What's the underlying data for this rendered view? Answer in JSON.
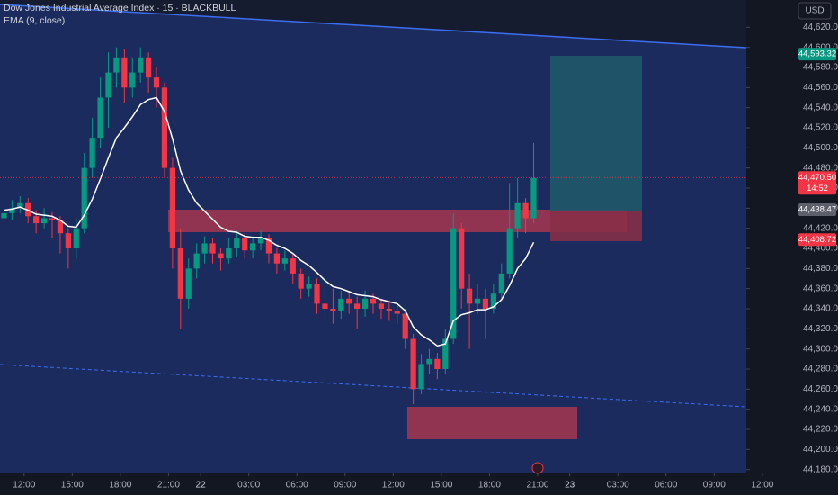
{
  "chart_data": {
    "type": "candlestick",
    "title": "Dow Jones Industrial Average Index · 15 · BLACKBULL",
    "subtitle": "EMA (9, close)",
    "currency": "USD",
    "up_color": "#089981",
    "down_color": "#f23645",
    "ema_color": "#ffffff",
    "x": [
      1,
      3,
      5,
      7,
      9,
      11,
      13,
      15,
      17,
      19,
      21,
      23,
      25,
      27,
      29,
      31,
      33,
      35,
      37,
      39,
      41,
      43,
      45,
      47,
      49,
      51,
      53,
      55,
      57,
      59,
      61,
      63,
      65,
      67,
      69,
      71,
      73,
      75,
      77,
      79,
      81,
      83,
      85,
      87,
      89,
      91,
      93,
      95,
      97,
      99,
      101,
      103,
      105,
      107,
      109,
      111,
      113,
      115,
      117,
      119,
      121,
      123,
      125,
      127,
      129,
      131,
      133
    ],
    "candles": [
      [
        44430,
        44445,
        44425,
        44435
      ],
      [
        44435,
        44448,
        44428,
        44440
      ],
      [
        44440,
        44452,
        44435,
        44445
      ],
      [
        44445,
        44450,
        44425,
        44432
      ],
      [
        44432,
        44438,
        44415,
        44425
      ],
      [
        44425,
        44440,
        44420,
        44430
      ],
      [
        44430,
        44436,
        44410,
        44428
      ],
      [
        44428,
        44432,
        44395,
        44415
      ],
      [
        44415,
        44420,
        44380,
        44400
      ],
      [
        44400,
        44430,
        44390,
        44420
      ],
      [
        44420,
        44495,
        44415,
        44480
      ],
      [
        44480,
        44530,
        44470,
        44510
      ],
      [
        44510,
        44570,
        44500,
        44550
      ],
      [
        44550,
        44595,
        44520,
        44575
      ],
      [
        44575,
        44600,
        44560,
        44590
      ],
      [
        44590,
        44598,
        44545,
        44560
      ],
      [
        44560,
        44590,
        44550,
        44575
      ],
      [
        44575,
        44600,
        44565,
        44590
      ],
      [
        44590,
        44595,
        44555,
        44570
      ],
      [
        44570,
        44580,
        44540,
        44560
      ],
      [
        44560,
        44565,
        44470,
        44480
      ],
      [
        44480,
        44490,
        44380,
        44400
      ],
      [
        44400,
        44420,
        44320,
        44350
      ],
      [
        44350,
        44390,
        44340,
        44380
      ],
      [
        44380,
        44405,
        44370,
        44395
      ],
      [
        44395,
        44412,
        44385,
        44405
      ],
      [
        44405,
        44410,
        44385,
        44395
      ],
      [
        44395,
        44400,
        44378,
        44390
      ],
      [
        44390,
        44410,
        44385,
        44400
      ],
      [
        44400,
        44418,
        44392,
        44410
      ],
      [
        44410,
        44415,
        44390,
        44398
      ],
      [
        44398,
        44412,
        44390,
        44405
      ],
      [
        44405,
        44418,
        44398,
        44410
      ],
      [
        44410,
        44414,
        44385,
        44395
      ],
      [
        44395,
        44400,
        44375,
        44385
      ],
      [
        44385,
        44398,
        44378,
        44390
      ],
      [
        44390,
        44394,
        44365,
        44375
      ],
      [
        44375,
        44380,
        44350,
        44360
      ],
      [
        44360,
        44372,
        44352,
        44365
      ],
      [
        44365,
        44370,
        44335,
        44345
      ],
      [
        44345,
        44362,
        44330,
        44340
      ],
      [
        44340,
        44360,
        44325,
        44338
      ],
      [
        44338,
        44358,
        44330,
        44350
      ],
      [
        44350,
        44356,
        44335,
        44345
      ],
      [
        44345,
        44352,
        44320,
        44340
      ],
      [
        44340,
        44358,
        44332,
        44350
      ],
      [
        44350,
        44355,
        44335,
        44345
      ],
      [
        44345,
        44350,
        44330,
        44340
      ],
      [
        44340,
        44348,
        44328,
        44338
      ],
      [
        44338,
        44345,
        44325,
        44335
      ],
      [
        44335,
        44340,
        44300,
        44310
      ],
      [
        44310,
        44315,
        44245,
        44260
      ],
      [
        44260,
        44295,
        44255,
        44285
      ],
      [
        44285,
        44300,
        44275,
        44290
      ],
      [
        44290,
        44296,
        44270,
        44280
      ],
      [
        44280,
        44320,
        44275,
        44310
      ],
      [
        44310,
        44435,
        44305,
        44420
      ],
      [
        44420,
        44425,
        44340,
        44360
      ],
      [
        44360,
        44375,
        44300,
        44345
      ],
      [
        44345,
        44365,
        44335,
        44350
      ],
      [
        44350,
        44360,
        44310,
        44340
      ],
      [
        44340,
        44365,
        44335,
        44355
      ],
      [
        44355,
        44385,
        44350,
        44375
      ],
      [
        44375,
        44465,
        44370,
        44420
      ],
      [
        44420,
        44470,
        44410,
        44445
      ],
      [
        44445,
        44450,
        44415,
        44430
      ],
      [
        44430,
        44505,
        44425,
        44470
      ]
    ],
    "ema": [
      44438,
      44439,
      44441,
      44438,
      44434,
      44433,
      44432,
      44428,
      44422,
      44421,
      44433,
      44449,
      44469,
      44490,
      44510,
      44520,
      44531,
      44543,
      44548,
      44550,
      44536,
      44509,
      44477,
      44458,
      44445,
      44437,
      44429,
      44421,
      44417,
      44416,
      44412,
      44411,
      44411,
      44408,
      44403,
      44400,
      44395,
      44388,
      44383,
      44376,
      44368,
      44362,
      44360,
      44357,
      44354,
      44353,
      44352,
      44349,
      44347,
      44345,
      44338,
      44322,
      44314,
      44309,
      44303,
      44305,
      44328,
      44334,
      44336,
      44339,
      44339,
      44342,
      44349,
      44363,
      44380,
      44390,
      44406
    ],
    "xlim": [
      0,
      186
    ],
    "xticks": [
      {
        "value": 6,
        "label": "12:00"
      },
      {
        "value": 18,
        "label": "15:00"
      },
      {
        "value": 30,
        "label": "18:00"
      },
      {
        "value": 42,
        "label": "21:00"
      },
      {
        "value": 50,
        "label": "22"
      },
      {
        "value": 62,
        "label": "03:00"
      },
      {
        "value": 74,
        "label": "06:00"
      },
      {
        "value": 86,
        "label": "09:00"
      },
      {
        "value": 98,
        "label": "12:00"
      },
      {
        "value": 110,
        "label": "15:00"
      },
      {
        "value": 122,
        "label": "18:00"
      },
      {
        "value": 134,
        "label": "21:00"
      },
      {
        "value": 142,
        "label": "23"
      },
      {
        "value": 154,
        "label": "03:00"
      },
      {
        "value": 166,
        "label": "06:00"
      },
      {
        "value": 178,
        "label": "09:00"
      },
      {
        "value": 190,
        "label": "12:00"
      }
    ],
    "ylim": [
      44177,
      44640
    ],
    "yticks": [
      {
        "value": 44180,
        "label": "44,180.00"
      },
      {
        "value": 44200,
        "label": "44,200.00"
      },
      {
        "value": 44220,
        "label": "44,220.00"
      },
      {
        "value": 44240,
        "label": "44,240.00"
      },
      {
        "value": 44260,
        "label": "44,260.00"
      },
      {
        "value": 44280,
        "label": "44,280.00"
      },
      {
        "value": 44300,
        "label": "44,300.00"
      },
      {
        "value": 44320,
        "label": "44,320.00"
      },
      {
        "value": 44340,
        "label": "44,340.00"
      },
      {
        "value": 44360,
        "label": "44,360.00"
      },
      {
        "value": 44380,
        "label": "44,380.00"
      },
      {
        "value": 44400,
        "label": "44,400.00"
      },
      {
        "value": 44420,
        "label": "44,420.00"
      },
      {
        "value": 44440,
        "label": "44,440.00"
      },
      {
        "value": 44460,
        "label": "44,460.00"
      },
      {
        "value": 44480,
        "label": "44,480.00"
      },
      {
        "value": 44500,
        "label": "44,500.00"
      },
      {
        "value": 44520,
        "label": "44,520.00"
      },
      {
        "value": 44540,
        "label": "44,540.00"
      },
      {
        "value": 44560,
        "label": "44,560.00"
      },
      {
        "value": 44580,
        "label": "44,580.00"
      },
      {
        "value": 44600,
        "label": "44,600.00"
      },
      {
        "value": 44620,
        "label": "44,620.00"
      }
    ],
    "price_labels": [
      {
        "value": 44593.32,
        "label": "44,593.32",
        "color": "#089981"
      },
      {
        "value": 44470.5,
        "label": "44,470.50",
        "sublabel": "14:52",
        "color": "#f23645"
      },
      {
        "value": 44438.47,
        "label": "44,438.47",
        "color": "#5d606b"
      },
      {
        "value": 44408.72,
        "label": "44,408.72",
        "color": "#f23645"
      }
    ]
  }
}
